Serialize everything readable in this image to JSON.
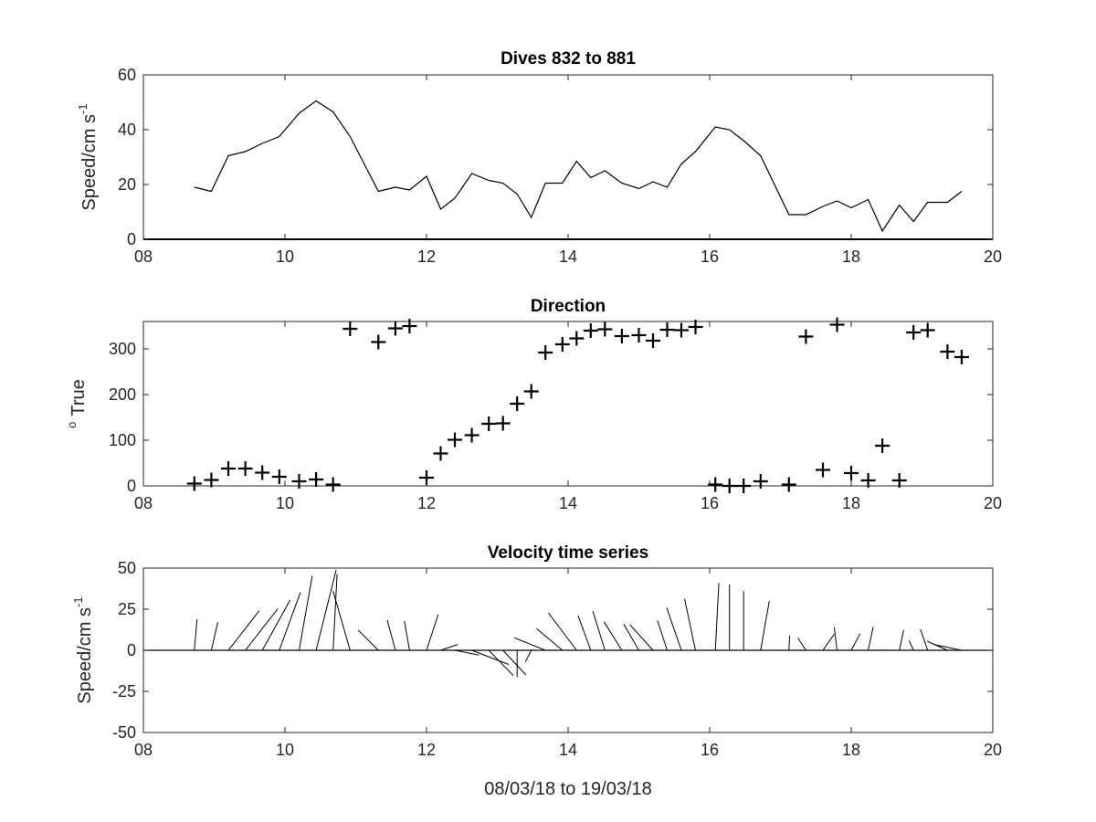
{
  "chart_data": [
    {
      "type": "line",
      "title": "Dives 832 to 881",
      "ylabel": "Speed/cm s",
      "ylabel_sup": "-1",
      "xlim": [
        8,
        20
      ],
      "ylim": [
        0,
        60
      ],
      "xticks": [
        8,
        10,
        12,
        14,
        16,
        18,
        20
      ],
      "xticklabels": [
        "08",
        "10",
        "12",
        "14",
        "16",
        "18",
        "20"
      ],
      "yticks": [
        0,
        20,
        40,
        60
      ],
      "yticklabels": [
        "0",
        "20",
        "40",
        "60"
      ],
      "grid": false,
      "series": [
        {
          "x": [
            8.72,
            8.96,
            9.2,
            9.44,
            9.68,
            9.92,
            10.2,
            10.44,
            10.68,
            10.92,
            11.32,
            11.56,
            11.76,
            12.0,
            12.2,
            12.4,
            12.64,
            12.88,
            13.08,
            13.28,
            13.48,
            13.68,
            13.92,
            14.12,
            14.32,
            14.52,
            14.76,
            15.0,
            15.2,
            15.4,
            15.6,
            15.8,
            16.08,
            16.28,
            16.48,
            16.72,
            17.12,
            17.36,
            17.6,
            17.8,
            18.0,
            18.24,
            18.44,
            18.68,
            18.88,
            19.08,
            19.36,
            19.56
          ],
          "y": [
            19,
            17.5,
            30.5,
            32,
            35,
            37.5,
            46,
            50.5,
            46.5,
            37.5,
            17.5,
            19,
            18,
            23,
            11,
            15,
            24,
            21.5,
            20.5,
            16.5,
            8,
            20.5,
            20.5,
            28.5,
            22.5,
            25,
            20.5,
            18.5,
            21,
            19,
            27.5,
            32,
            41,
            40,
            36,
            30.5,
            9,
            9,
            12,
            14,
            11.5,
            14.5,
            3,
            12.5,
            6.5,
            13.5,
            13.5,
            17.5
          ]
        }
      ]
    },
    {
      "type": "scatter",
      "title": "Direction",
      "ylabel": "True",
      "ylabel_sup": "o",
      "xlim": [
        8,
        20
      ],
      "ylim": [
        0,
        360
      ],
      "xticks": [
        8,
        10,
        12,
        14,
        16,
        18,
        20
      ],
      "xticklabels": [
        "08",
        "10",
        "12",
        "14",
        "16",
        "18",
        "20"
      ],
      "yticks": [
        0,
        100,
        200,
        300
      ],
      "yticklabels": [
        "0",
        "100",
        "200",
        "300"
      ],
      "grid": false,
      "marker": "+",
      "series": [
        {
          "x": [
            8.72,
            8.96,
            9.2,
            9.44,
            9.68,
            9.92,
            10.2,
            10.44,
            10.68,
            10.92,
            11.32,
            11.56,
            11.76,
            12.0,
            12.2,
            12.4,
            12.64,
            12.88,
            13.08,
            13.28,
            13.48,
            13.68,
            13.92,
            14.12,
            14.32,
            14.52,
            14.76,
            15.0,
            15.2,
            15.4,
            15.6,
            15.8,
            16.08,
            16.28,
            16.48,
            16.72,
            17.12,
            17.36,
            17.6,
            17.8,
            18.0,
            18.24,
            18.44,
            18.68,
            18.88,
            19.08,
            19.36,
            19.56
          ],
          "y": [
            5,
            13,
            38,
            38,
            29,
            20,
            10,
            14,
            3,
            344,
            315,
            345,
            350,
            18,
            71,
            101,
            111,
            136,
            137,
            180,
            207,
            292,
            310,
            323,
            340,
            343,
            328,
            330,
            318,
            342,
            341,
            348,
            3,
            0,
            0,
            10,
            3,
            327,
            35,
            353,
            28,
            12,
            88,
            12,
            336,
            341,
            294,
            282
          ]
        }
      ]
    },
    {
      "type": "quiver",
      "title": "Velocity time series",
      "ylabel": "Speed/cm s",
      "ylabel_sup": "-1",
      "xlabel": "08/03/18 to 19/03/18",
      "xlim": [
        8,
        20
      ],
      "ylim": [
        -50,
        50
      ],
      "xticks": [
        8,
        10,
        12,
        14,
        16,
        18,
        20
      ],
      "xticklabels": [
        "08",
        "10",
        "12",
        "14",
        "16",
        "18",
        "20"
      ],
      "yticks": [
        -50,
        -25,
        0,
        25,
        50
      ],
      "yticklabels": [
        "-50",
        "-25",
        "0",
        "25",
        "50"
      ],
      "grid": false,
      "baseline": 0,
      "vector_source": "speed and direction from panels 1 and 2"
    }
  ]
}
